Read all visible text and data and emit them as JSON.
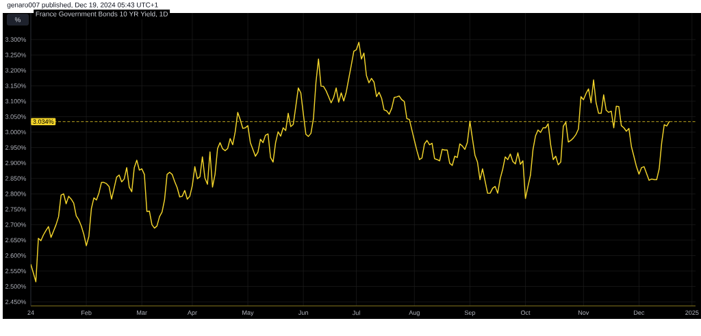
{
  "chart_data": {
    "type": "line",
    "title": "France Government Bonds 10 YR Yield, 1D",
    "ylabel": "%",
    "annotations": [
      "genaro007 published, Dec 19, 2024 05:43 UTC+1"
    ],
    "categories": [
      "24",
      null,
      null,
      null,
      null,
      null,
      null,
      null,
      null,
      null,
      null,
      null,
      null,
      null,
      null,
      null,
      null,
      null,
      null,
      null,
      null,
      null,
      "Feb",
      null,
      null,
      null,
      null,
      null,
      null,
      null,
      null,
      null,
      null,
      null,
      null,
      null,
      null,
      null,
      null,
      null,
      null,
      null,
      null,
      null,
      "Mar",
      null,
      null,
      null,
      null,
      null,
      null,
      null,
      null,
      null,
      null,
      null,
      null,
      null,
      null,
      null,
      null,
      null,
      null,
      null,
      "Apr",
      null,
      null,
      null,
      null,
      null,
      null,
      null,
      null,
      null,
      null,
      null,
      null,
      null,
      null,
      null,
      null,
      null,
      null,
      null,
      null,
      null,
      "May",
      null,
      null,
      null,
      null,
      null,
      null,
      null,
      null,
      null,
      null,
      null,
      null,
      null,
      null,
      null,
      null,
      null,
      null,
      null,
      null,
      null,
      "Jun",
      null,
      null,
      null,
      null,
      null,
      null,
      null,
      null,
      null,
      null,
      null,
      null,
      null,
      null,
      null,
      null,
      null,
      null,
      null,
      null,
      "Jul",
      null,
      null,
      null,
      null,
      null,
      null,
      null,
      null,
      null,
      null,
      null,
      null,
      null,
      null,
      null,
      null,
      null,
      null,
      null,
      null,
      null,
      null,
      "Aug",
      null,
      null,
      null,
      null,
      null,
      null,
      null,
      null,
      null,
      null,
      null,
      null,
      null,
      null,
      null,
      null,
      null,
      null,
      null,
      null,
      null,
      "Sep",
      null,
      null,
      null,
      null,
      null,
      null,
      null,
      null,
      null,
      null,
      null,
      null,
      null,
      null,
      null,
      null,
      null,
      null,
      null,
      null,
      null,
      "Oct",
      null,
      null,
      null,
      null,
      null,
      null,
      null,
      null,
      null,
      null,
      null,
      null,
      null,
      null,
      null,
      null,
      null,
      null,
      null,
      null,
      null,
      null,
      "Nov",
      null,
      null,
      null,
      null,
      null,
      null,
      null,
      null,
      null,
      null,
      null,
      null,
      null,
      null,
      null,
      null,
      null,
      null,
      null,
      null,
      null,
      "Dec",
      null,
      null,
      null,
      null,
      null,
      null,
      null,
      null,
      null,
      null,
      null,
      null,
      null,
      null,
      null,
      null,
      null,
      null,
      null,
      null,
      "2025"
    ],
    "series": [
      {
        "color": "#f2d42b",
        "values": [
          2.571,
          2.544,
          2.515,
          2.656,
          2.648,
          2.667,
          2.681,
          2.694,
          2.659,
          2.679,
          2.7,
          2.726,
          2.796,
          2.8,
          2.768,
          2.792,
          2.783,
          2.77,
          2.729,
          2.716,
          2.696,
          2.669,
          2.632,
          2.662,
          2.752,
          2.787,
          2.78,
          2.803,
          2.837,
          2.837,
          2.833,
          2.824,
          2.783,
          2.818,
          2.854,
          2.861,
          2.839,
          2.848,
          2.885,
          2.822,
          2.807,
          2.885,
          2.909,
          2.877,
          2.881,
          2.863,
          2.743,
          2.744,
          2.7,
          2.689,
          2.696,
          2.726,
          2.741,
          2.781,
          2.863,
          2.87,
          2.863,
          2.84,
          2.82,
          2.79,
          2.792,
          2.811,
          2.783,
          2.792,
          2.827,
          2.888,
          2.849,
          2.855,
          2.92,
          2.851,
          2.831,
          2.936,
          2.822,
          2.863,
          2.947,
          2.966,
          2.946,
          2.94,
          2.947,
          2.979,
          2.959,
          3.001,
          3.064,
          3.04,
          3.012,
          3.014,
          3.021,
          2.966,
          2.944,
          2.922,
          2.935,
          2.977,
          2.966,
          2.99,
          2.994,
          2.918,
          2.903,
          2.966,
          3.001,
          2.987,
          3.014,
          3.005,
          3.061,
          3.018,
          3.025,
          3.083,
          3.143,
          3.127,
          3.058,
          2.993,
          2.986,
          2.996,
          3.044,
          3.162,
          3.237,
          3.149,
          3.148,
          3.134,
          3.115,
          3.095,
          3.112,
          3.143,
          3.097,
          3.127,
          3.101,
          3.13,
          3.174,
          3.217,
          3.262,
          3.267,
          3.291,
          3.237,
          3.256,
          3.183,
          3.16,
          3.174,
          3.162,
          3.115,
          3.129,
          3.11,
          3.072,
          3.069,
          3.058,
          3.077,
          3.112,
          3.114,
          3.117,
          3.105,
          3.099,
          3.044,
          3.041,
          3.007,
          2.973,
          2.94,
          2.911,
          2.916,
          2.962,
          2.973,
          2.959,
          2.964,
          2.914,
          2.911,
          2.907,
          2.944,
          2.942,
          2.942,
          2.899,
          2.892,
          2.922,
          2.918,
          2.962,
          2.955,
          2.944,
          2.967,
          3.035,
          2.979,
          2.925,
          2.903,
          2.846,
          2.881,
          2.842,
          2.802,
          2.802,
          2.818,
          2.824,
          2.802,
          2.849,
          2.88,
          2.92,
          2.911,
          2.929,
          2.905,
          2.897,
          2.933,
          2.896,
          2.907,
          2.785,
          2.824,
          2.861,
          2.944,
          2.988,
          3.007,
          2.999,
          3.014,
          3.014,
          3.027,
          2.959,
          2.911,
          2.922,
          2.894,
          2.903,
          3.019,
          3.032,
          2.968,
          2.973,
          2.981,
          2.992,
          3.01,
          3.115,
          3.105,
          3.125,
          3.14,
          3.095,
          3.169,
          3.095,
          3.061,
          3.061,
          3.121,
          3.071,
          3.064,
          3.068,
          3.014,
          3.084,
          3.083,
          3.021,
          3.014,
          3.003,
          3.012,
          2.953,
          2.921,
          2.888,
          2.864,
          2.885,
          2.888,
          2.866,
          2.844,
          2.848,
          2.846,
          2.846,
          2.881,
          2.966,
          3.024,
          3.02,
          3.034,
          null,
          null,
          null,
          null,
          null,
          null,
          null,
          null,
          null
        ]
      }
    ],
    "ylim": [
      2.437,
      3.386
    ],
    "yticks": [
      {
        "value": 2.45,
        "label": "2.450%"
      },
      {
        "value": 2.5,
        "label": "2.500%"
      },
      {
        "value": 2.55,
        "label": "2.550%"
      },
      {
        "value": 2.6,
        "label": "2.600%"
      },
      {
        "value": 2.65,
        "label": "2.650%"
      },
      {
        "value": 2.7,
        "label": "2.700%"
      },
      {
        "value": 2.75,
        "label": "2.750%"
      },
      {
        "value": 2.8,
        "label": "2.800%"
      },
      {
        "value": 2.85,
        "label": "2.850%"
      },
      {
        "value": 2.9,
        "label": "2.900%"
      },
      {
        "value": 2.95,
        "label": "2.950%"
      },
      {
        "value": 3.0,
        "label": "3.000%"
      },
      {
        "value": 3.05,
        "label": "3.050%"
      },
      {
        "value": 3.1,
        "label": "3.100%"
      },
      {
        "value": 3.15,
        "label": "3.150%"
      },
      {
        "value": 3.2,
        "label": "3.200%"
      },
      {
        "value": 3.25,
        "label": "3.250%"
      },
      {
        "value": 3.3,
        "label": "3.300%"
      }
    ],
    "ref_lines": [
      {
        "axis": "y",
        "value": 3.034,
        "label": "3.034%",
        "color": "#f2d42b",
        "line_style": "dashed"
      }
    ],
    "grid": true
  }
}
